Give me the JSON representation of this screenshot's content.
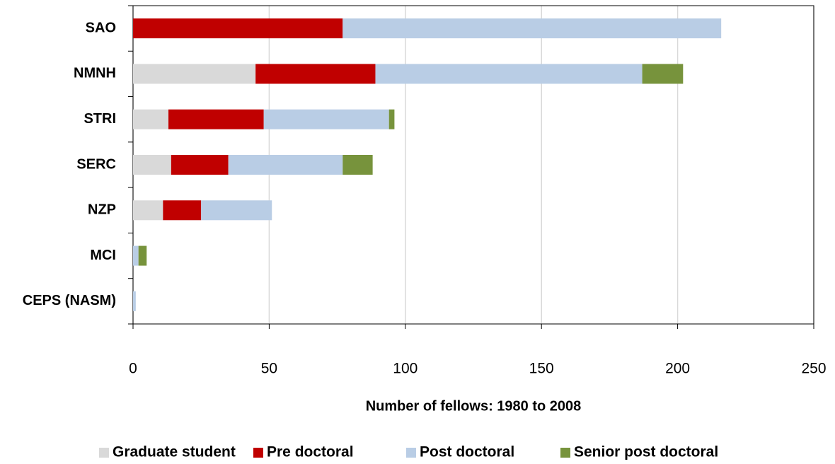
{
  "chart_data": {
    "type": "bar",
    "orientation": "horizontal",
    "stacked": true,
    "categories": [
      "SAO",
      "NMNH",
      "STRI",
      "SERC",
      "NZP",
      "MCI",
      "CEPS (NASM)"
    ],
    "series": [
      {
        "name": "Graduate student",
        "color": "#d9d9d9",
        "values": [
          0,
          45,
          13,
          14,
          11,
          0,
          0
        ]
      },
      {
        "name": "Pre doctoral",
        "color": "#c00000",
        "values": [
          77,
          44,
          35,
          21,
          14,
          0,
          0
        ]
      },
      {
        "name": "Post doctoral",
        "color": "#b9cde5",
        "values": [
          139,
          98,
          46,
          42,
          26,
          2,
          1
        ]
      },
      {
        "name": "Senior post doctoral",
        "color": "#77933c",
        "values": [
          0,
          15,
          2,
          11,
          0,
          3,
          0
        ]
      }
    ],
    "xlabel": "Number of fellows: 1980 to 2008",
    "xlim": [
      0,
      250
    ],
    "xticks": [
      0,
      50,
      100,
      150,
      200,
      250
    ],
    "grid": true,
    "legend": "bottom"
  }
}
